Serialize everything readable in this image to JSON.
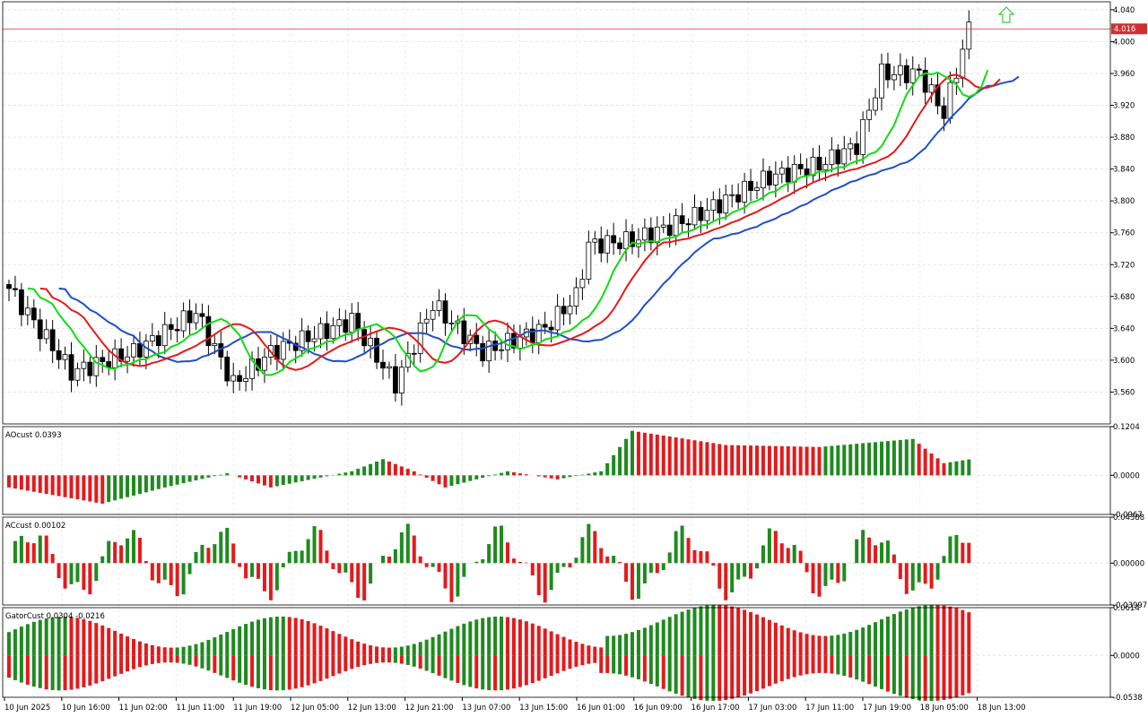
{
  "chart_data": [
    {
      "type": "candlestick",
      "panel": "main",
      "ylim": [
        3.52,
        4.05
      ],
      "yticks": [
        "4.040",
        "4.000",
        "3.960",
        "3.920",
        "3.880",
        "3.840",
        "3.800",
        "3.760",
        "3.720",
        "3.680",
        "3.640",
        "3.600",
        "3.560"
      ],
      "current_price": 4.016,
      "current_price_label": "4.016",
      "grid": true,
      "series": [
        {
          "name": "jaw",
          "color": "#1f4fc8"
        },
        {
          "name": "teeth",
          "color": "#e31a1c"
        },
        {
          "name": "lips",
          "color": "#11dd11"
        }
      ]
    },
    {
      "type": "histogram",
      "panel": "ao",
      "title": "AOcust 0.0393",
      "ylim": [
        -0.0967,
        0.1204
      ],
      "yticks": [
        "0.1204",
        "0.0000",
        "-0.0967"
      ],
      "up_color": "#1f8a1f",
      "down_color": "#e31a1c"
    },
    {
      "type": "histogram",
      "panel": "ac",
      "title": "ACcust 0.00102",
      "ylim": [
        -0.03997,
        0.04388
      ],
      "yticks": [
        "0.04388",
        "0.00000",
        "-0.03997"
      ],
      "up_color": "#1f8a1f",
      "down_color": "#e31a1c"
    },
    {
      "type": "histogram",
      "panel": "gator",
      "title": "GatorCust 0.0304 -0.0216",
      "ylim": [
        -0.0538,
        0.0614
      ],
      "yticks": [
        "0.0614",
        "0.0000",
        "-0.0538"
      ],
      "up_color": "#1f8a1f",
      "down_color": "#e31a1c"
    }
  ],
  "x_labels": [
    "10 Jun 2025",
    "10 Jun 16:00",
    "11 Jun 02:00",
    "11 Jun 11:00",
    "11 Jun 19:00",
    "12 Jun 05:00",
    "12 Jun 13:00",
    "12 Jun 21:00",
    "13 Jun 07:00",
    "13 Jun 15:00",
    "16 Jun 01:00",
    "16 Jun 09:00",
    "16 Jun 17:00",
    "17 Jun 03:00",
    "17 Jun 11:00",
    "17 Jun 19:00",
    "18 Jun 05:00",
    "18 Jun 13:00"
  ]
}
